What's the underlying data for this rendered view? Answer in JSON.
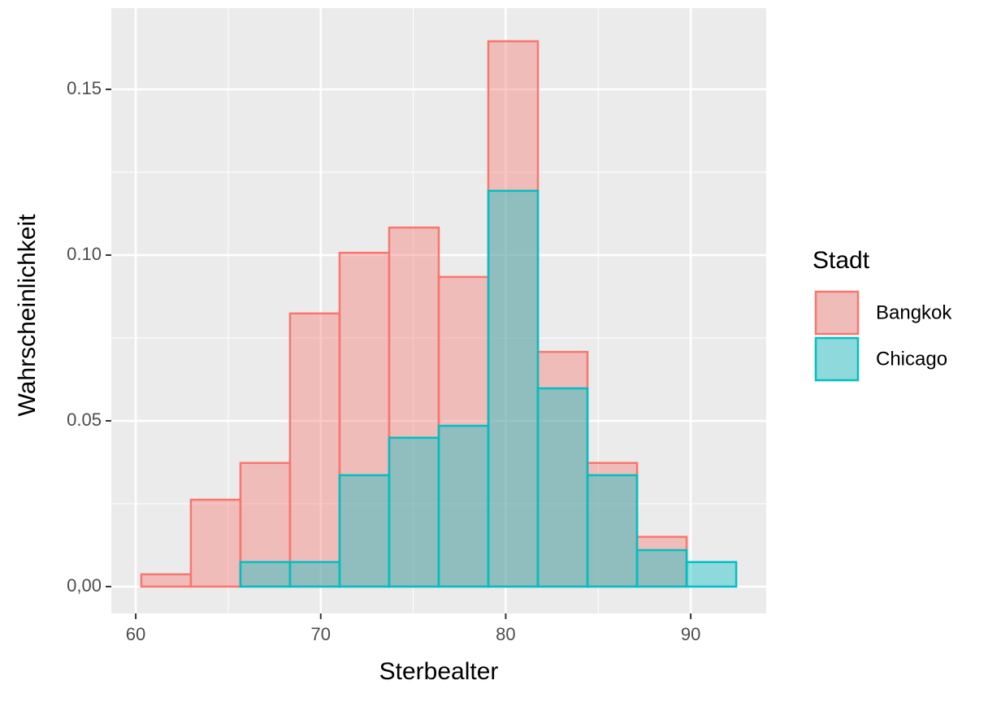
{
  "chart_data": {
    "type": "histogram",
    "x_label": "Sterbealter",
    "y_label": "Wahrscheinlichkeit",
    "legend_title": "Stadt",
    "legend_position": "right",
    "bins": [
      60.3,
      62.98,
      65.66,
      68.34,
      71.02,
      73.7,
      76.38,
      79.06,
      81.74,
      84.42,
      87.1,
      89.78,
      92.46
    ],
    "series": [
      {
        "name": "Bangkok",
        "color": "#F8766D",
        "values": [
          0.0037,
          0.0262,
          0.0373,
          0.0824,
          0.1007,
          0.1083,
          0.0934,
          0.1645,
          0.0708,
          0.0373,
          0.015,
          0
        ]
      },
      {
        "name": "Chicago",
        "color": "#00BFC4",
        "values": [
          0,
          0,
          0.0074,
          0.0074,
          0.0336,
          0.0449,
          0.0485,
          0.1194,
          0.0598,
          0.0336,
          0.011,
          0.0074
        ]
      }
    ],
    "fill_opacity": 0.4,
    "xlim": [
      58.68,
      94.08
    ],
    "ylim": [
      -0.0081,
      0.1745
    ],
    "xticks": [
      60,
      70,
      80,
      90
    ],
    "yticks": [
      {
        "value": 0,
        "label": "0,00"
      },
      {
        "value": 0.05,
        "label": "0.05"
      },
      {
        "value": 0.1,
        "label": "0.10"
      },
      {
        "value": 0.15,
        "label": "0.15"
      }
    ],
    "minor_xticks": [
      65,
      75,
      85
    ],
    "minor_yticks": [
      0.025,
      0.075,
      0.125
    ],
    "grid": true
  }
}
